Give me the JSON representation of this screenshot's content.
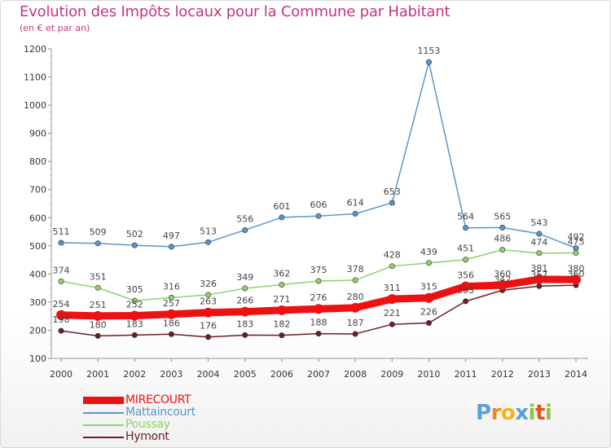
{
  "chart_data": {
    "type": "line",
    "title": "Evolution des Impôts locaux pour la Commune par Habitant",
    "subtitle": "(en € et par an)",
    "xlabel": "",
    "ylabel": "",
    "x": [
      "2000",
      "2001",
      "2002",
      "2003",
      "2004",
      "2005",
      "2006",
      "2007",
      "2008",
      "2009",
      "2010",
      "2011",
      "2012",
      "2013",
      "2014"
    ],
    "ylim": [
      100,
      1200
    ],
    "yticks": [
      "100",
      "200",
      "300",
      "400",
      "500",
      "600",
      "700",
      "800",
      "900",
      "1000",
      "1100",
      "1200"
    ],
    "series": [
      {
        "name": "Hymont",
        "color": "#6b1f24",
        "values": [
          198,
          180,
          183,
          186,
          176,
          183,
          182,
          188,
          187,
          221,
          226,
          303,
          342,
          357,
          360
        ]
      },
      {
        "name": "Poussay",
        "color": "#8fd16a",
        "values": [
          374,
          351,
          305,
          316,
          326,
          349,
          362,
          375,
          378,
          428,
          439,
          451,
          486,
          474,
          475
        ]
      },
      {
        "name": "Mattaincourt",
        "color": "#5b95c7",
        "values": [
          511,
          509,
          502,
          497,
          513,
          556,
          601,
          606,
          614,
          653,
          1153,
          564,
          565,
          543,
          492
        ]
      },
      {
        "name": "MIRECOURT",
        "color": "#ee1111",
        "values": [
          254,
          251,
          252,
          257,
          263,
          266,
          271,
          276,
          280,
          311,
          315,
          356,
          360,
          381,
          380
        ]
      }
    ],
    "legend": [
      "MIRECOURT",
      "Mattaincourt",
      "Poussay",
      "Hymont"
    ]
  },
  "logo": {
    "text": "Proxiti"
  }
}
